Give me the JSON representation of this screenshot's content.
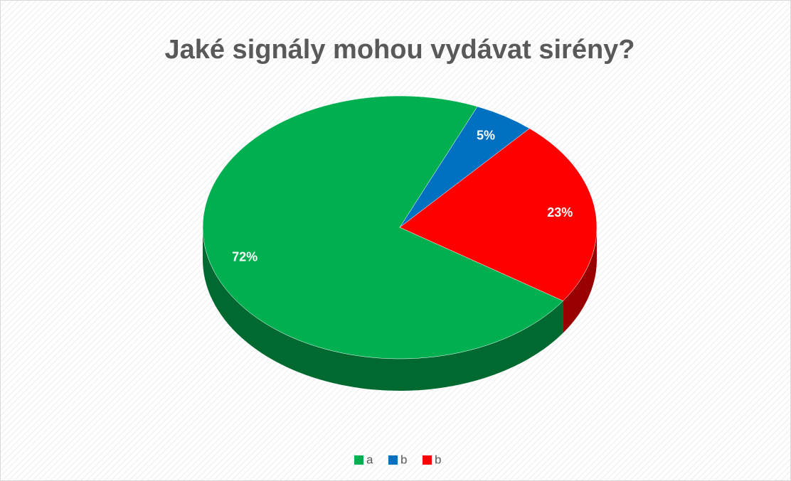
{
  "chart_data": {
    "type": "pie",
    "title": "Jaké signály mohou vydávat sirény?",
    "categories": [
      "a",
      "b",
      "b"
    ],
    "values": [
      72,
      5,
      23
    ],
    "value_labels": [
      "72%",
      "5%",
      "23%"
    ],
    "colors": [
      "#00b050",
      "#0070c0",
      "#ff0000"
    ],
    "legend": "bottom"
  }
}
